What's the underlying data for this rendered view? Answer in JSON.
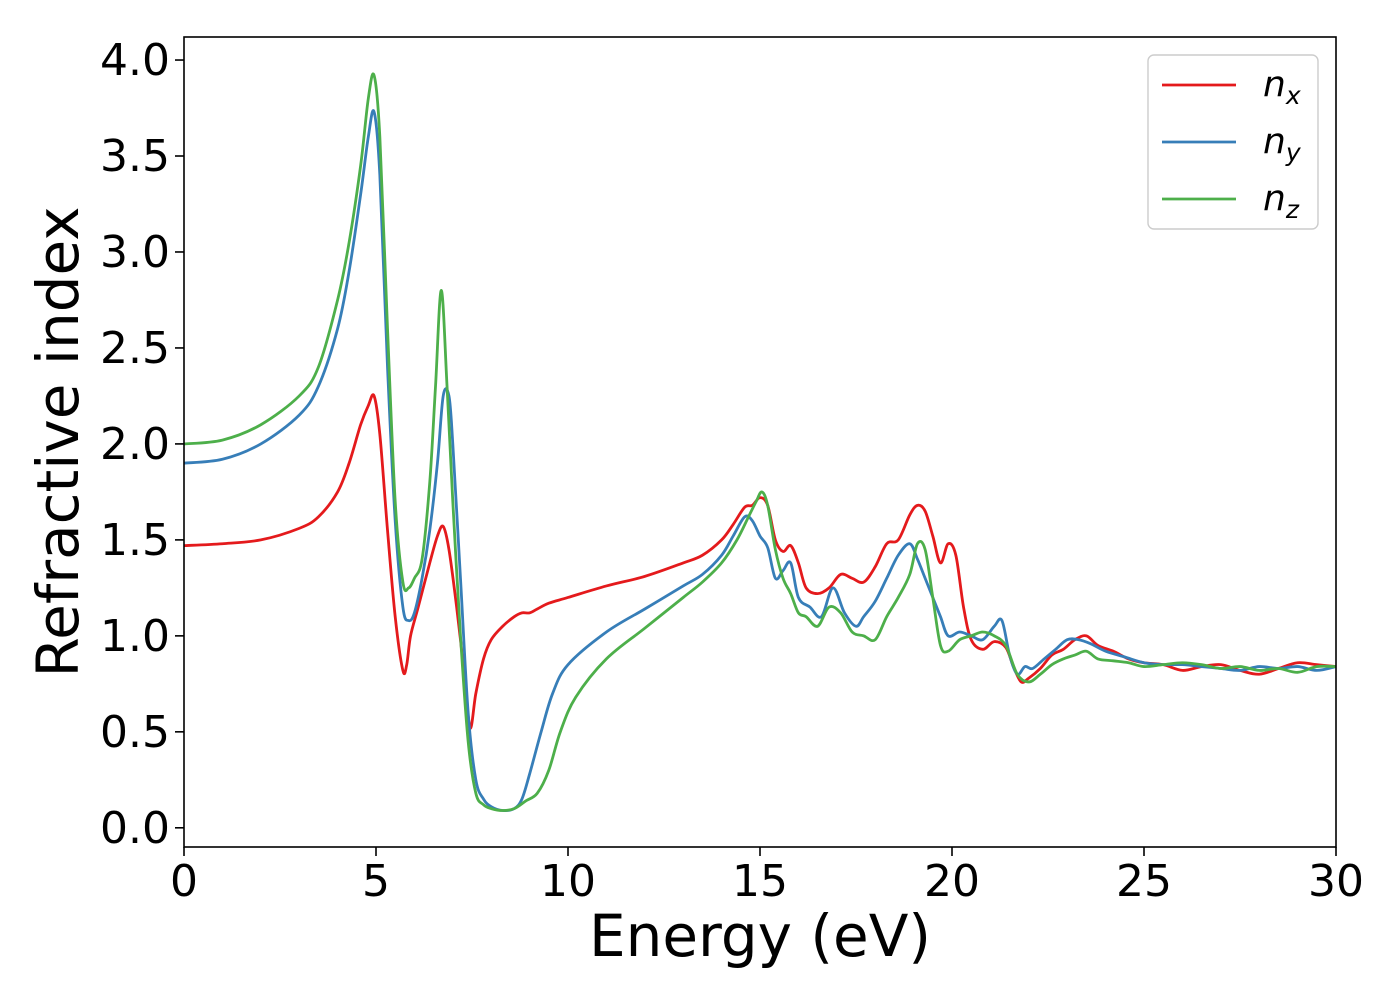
{
  "chart_data": {
    "type": "line",
    "title": "",
    "xlabel": "Energy (eV)",
    "ylabel": "Refractive index",
    "xlim": [
      0,
      30
    ],
    "ylim": [
      -0.1,
      4.12
    ],
    "xticks": [
      0,
      5,
      10,
      15,
      20,
      25,
      30
    ],
    "yticks": [
      0.0,
      0.5,
      1.0,
      1.5,
      2.0,
      2.5,
      3.0,
      3.5,
      4.0
    ],
    "xtick_labels": [
      "0",
      "5",
      "10",
      "15",
      "20",
      "25",
      "30"
    ],
    "ytick_labels": [
      "0.0",
      "0.5",
      "1.0",
      "1.5",
      "2.0",
      "2.5",
      "3.0",
      "3.5",
      "4.0"
    ],
    "grid": false,
    "legend_position": "top-right",
    "series": [
      {
        "name": "n_x",
        "label_base": "n",
        "label_sub": "x",
        "color": "#e41a1c",
        "x": [
          0,
          1,
          2,
          3,
          3.5,
          4,
          4.3,
          4.6,
          4.8,
          4.95,
          5.1,
          5.3,
          5.5,
          5.7,
          5.8,
          5.9,
          6.1,
          6.4,
          6.6,
          6.75,
          6.9,
          7.1,
          7.3,
          7.45,
          7.6,
          7.8,
          8.0,
          8.3,
          8.6,
          8.8,
          9.0,
          9.2,
          9.5,
          10,
          11,
          12,
          13,
          13.5,
          14,
          14.3,
          14.6,
          14.8,
          15.0,
          15.2,
          15.4,
          15.6,
          15.8,
          16.0,
          16.2,
          16.5,
          16.8,
          17.1,
          17.4,
          17.7,
          18.0,
          18.3,
          18.6,
          18.9,
          19.1,
          19.3,
          19.5,
          19.7,
          19.9,
          20.1,
          20.3,
          20.5,
          20.8,
          21.1,
          21.4,
          21.6,
          21.8,
          22.0,
          22.3,
          22.6,
          22.9,
          23.2,
          23.5,
          23.8,
          24.2,
          24.6,
          25,
          25.5,
          26,
          26.5,
          27,
          27.5,
          28,
          28.5,
          29,
          29.5,
          30
        ],
        "y": [
          1.47,
          1.48,
          1.5,
          1.56,
          1.62,
          1.75,
          1.9,
          2.1,
          2.2,
          2.25,
          2.05,
          1.55,
          1.1,
          0.82,
          0.85,
          1.0,
          1.15,
          1.38,
          1.52,
          1.57,
          1.45,
          1.15,
          0.8,
          0.52,
          0.7,
          0.88,
          0.98,
          1.05,
          1.1,
          1.12,
          1.12,
          1.14,
          1.17,
          1.2,
          1.26,
          1.31,
          1.38,
          1.42,
          1.5,
          1.58,
          1.67,
          1.68,
          1.72,
          1.68,
          1.5,
          1.44,
          1.47,
          1.38,
          1.25,
          1.22,
          1.25,
          1.32,
          1.3,
          1.28,
          1.36,
          1.48,
          1.5,
          1.63,
          1.68,
          1.65,
          1.52,
          1.38,
          1.48,
          1.42,
          1.15,
          0.98,
          0.93,
          0.97,
          0.94,
          0.84,
          0.76,
          0.78,
          0.83,
          0.9,
          0.93,
          0.98,
          1.0,
          0.95,
          0.92,
          0.88,
          0.86,
          0.85,
          0.82,
          0.84,
          0.85,
          0.82,
          0.8,
          0.83,
          0.86,
          0.85,
          0.84
        ]
      },
      {
        "name": "n_y",
        "label_base": "n",
        "label_sub": "y",
        "color": "#377eb8",
        "x": [
          0,
          1,
          2,
          3,
          3.5,
          4,
          4.3,
          4.6,
          4.8,
          4.95,
          5.1,
          5.3,
          5.5,
          5.7,
          5.85,
          6.0,
          6.2,
          6.4,
          6.6,
          6.75,
          6.9,
          7.0,
          7.2,
          7.4,
          7.6,
          7.8,
          8.0,
          8.3,
          8.6,
          8.8,
          9.0,
          9.3,
          9.6,
          10,
          11,
          12,
          13,
          13.5,
          14,
          14.3,
          14.6,
          14.8,
          15.0,
          15.2,
          15.4,
          15.6,
          15.8,
          16.0,
          16.3,
          16.6,
          16.9,
          17.2,
          17.5,
          17.7,
          18.0,
          18.3,
          18.6,
          18.9,
          19.1,
          19.3,
          19.5,
          19.7,
          19.9,
          20.2,
          20.5,
          20.8,
          21.1,
          21.3,
          21.5,
          21.7,
          21.9,
          22.1,
          22.4,
          22.7,
          23.0,
          23.3,
          23.6,
          24.0,
          24.5,
          25,
          25.5,
          26,
          26.5,
          27,
          27.5,
          28,
          28.5,
          29,
          29.5,
          30
        ],
        "y": [
          1.9,
          1.92,
          2.0,
          2.15,
          2.3,
          2.6,
          2.9,
          3.3,
          3.6,
          3.73,
          3.4,
          2.4,
          1.6,
          1.15,
          1.08,
          1.12,
          1.3,
          1.55,
          1.9,
          2.25,
          2.25,
          2.0,
          1.3,
          0.6,
          0.25,
          0.15,
          0.11,
          0.09,
          0.1,
          0.15,
          0.28,
          0.5,
          0.7,
          0.85,
          1.02,
          1.14,
          1.26,
          1.32,
          1.42,
          1.52,
          1.62,
          1.6,
          1.52,
          1.46,
          1.3,
          1.34,
          1.38,
          1.2,
          1.15,
          1.1,
          1.25,
          1.12,
          1.05,
          1.1,
          1.18,
          1.3,
          1.42,
          1.48,
          1.4,
          1.3,
          1.2,
          1.1,
          1.0,
          1.02,
          1.0,
          0.98,
          1.05,
          1.08,
          0.9,
          0.8,
          0.84,
          0.83,
          0.88,
          0.93,
          0.98,
          0.98,
          0.96,
          0.92,
          0.89,
          0.86,
          0.85,
          0.85,
          0.84,
          0.83,
          0.82,
          0.84,
          0.83,
          0.84,
          0.82,
          0.84
        ]
      },
      {
        "name": "n_z",
        "label_base": "n",
        "label_sub": "z",
        "color": "#4daf4a",
        "x": [
          0,
          1,
          2,
          3,
          3.5,
          4,
          4.3,
          4.6,
          4.8,
          4.95,
          5.1,
          5.3,
          5.5,
          5.7,
          5.85,
          6.0,
          6.2,
          6.4,
          6.55,
          6.7,
          6.85,
          7.0,
          7.2,
          7.4,
          7.6,
          7.8,
          8.0,
          8.3,
          8.6,
          8.9,
          9.2,
          9.5,
          9.8,
          10.2,
          11,
          12,
          13,
          13.5,
          14,
          14.4,
          14.7,
          14.9,
          15.05,
          15.2,
          15.4,
          15.6,
          15.8,
          16.0,
          16.2,
          16.5,
          16.8,
          17.1,
          17.4,
          17.7,
          18.0,
          18.3,
          18.6,
          18.9,
          19.1,
          19.3,
          19.5,
          19.7,
          19.9,
          20.2,
          20.5,
          20.8,
          21.1,
          21.4,
          21.7,
          22.0,
          22.3,
          22.6,
          22.9,
          23.2,
          23.5,
          23.8,
          24.2,
          24.6,
          25,
          25.5,
          26,
          26.5,
          27,
          27.5,
          28,
          28.5,
          29,
          29.5,
          30
        ],
        "y": [
          2.0,
          2.02,
          2.1,
          2.25,
          2.4,
          2.75,
          3.05,
          3.45,
          3.8,
          3.92,
          3.6,
          2.6,
          1.7,
          1.28,
          1.25,
          1.3,
          1.4,
          1.8,
          2.3,
          2.8,
          2.3,
          1.7,
          1.0,
          0.45,
          0.18,
          0.12,
          0.1,
          0.09,
          0.1,
          0.14,
          0.18,
          0.3,
          0.5,
          0.68,
          0.88,
          1.04,
          1.2,
          1.28,
          1.38,
          1.5,
          1.62,
          1.7,
          1.75,
          1.68,
          1.45,
          1.3,
          1.22,
          1.12,
          1.1,
          1.05,
          1.15,
          1.12,
          1.02,
          1.0,
          0.98,
          1.1,
          1.2,
          1.32,
          1.48,
          1.45,
          1.2,
          0.95,
          0.92,
          0.98,
          1.0,
          1.02,
          1.0,
          0.95,
          0.8,
          0.76,
          0.8,
          0.85,
          0.88,
          0.9,
          0.92,
          0.88,
          0.87,
          0.86,
          0.84,
          0.85,
          0.86,
          0.85,
          0.83,
          0.84,
          0.82,
          0.83,
          0.81,
          0.84,
          0.84
        ]
      }
    ]
  }
}
